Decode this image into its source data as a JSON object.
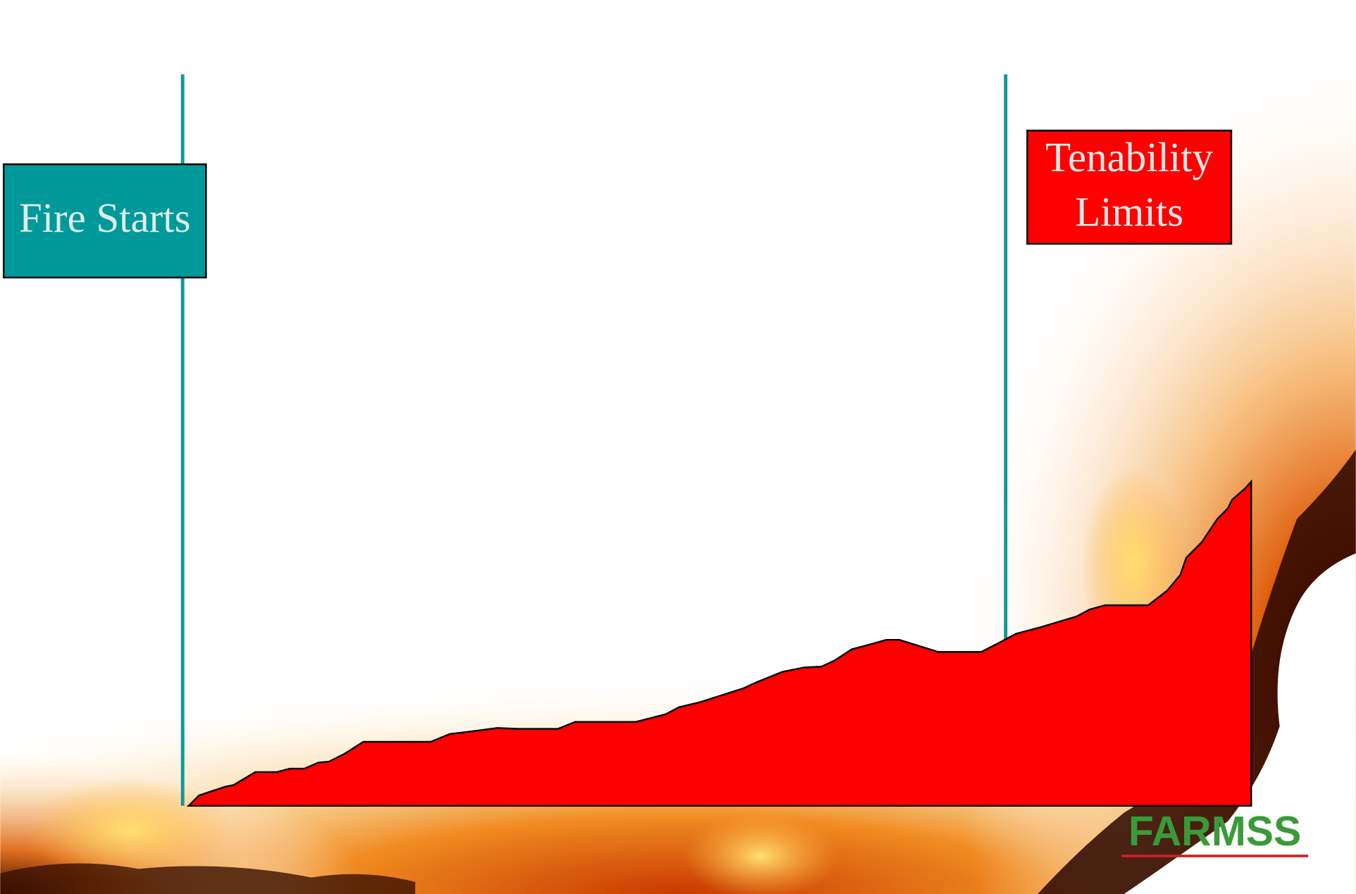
{
  "labels": {
    "fire_starts": "Fire Starts",
    "tenability_limits": [
      "Tenability",
      "Limits"
    ]
  },
  "logo": "FARMSS"
}
